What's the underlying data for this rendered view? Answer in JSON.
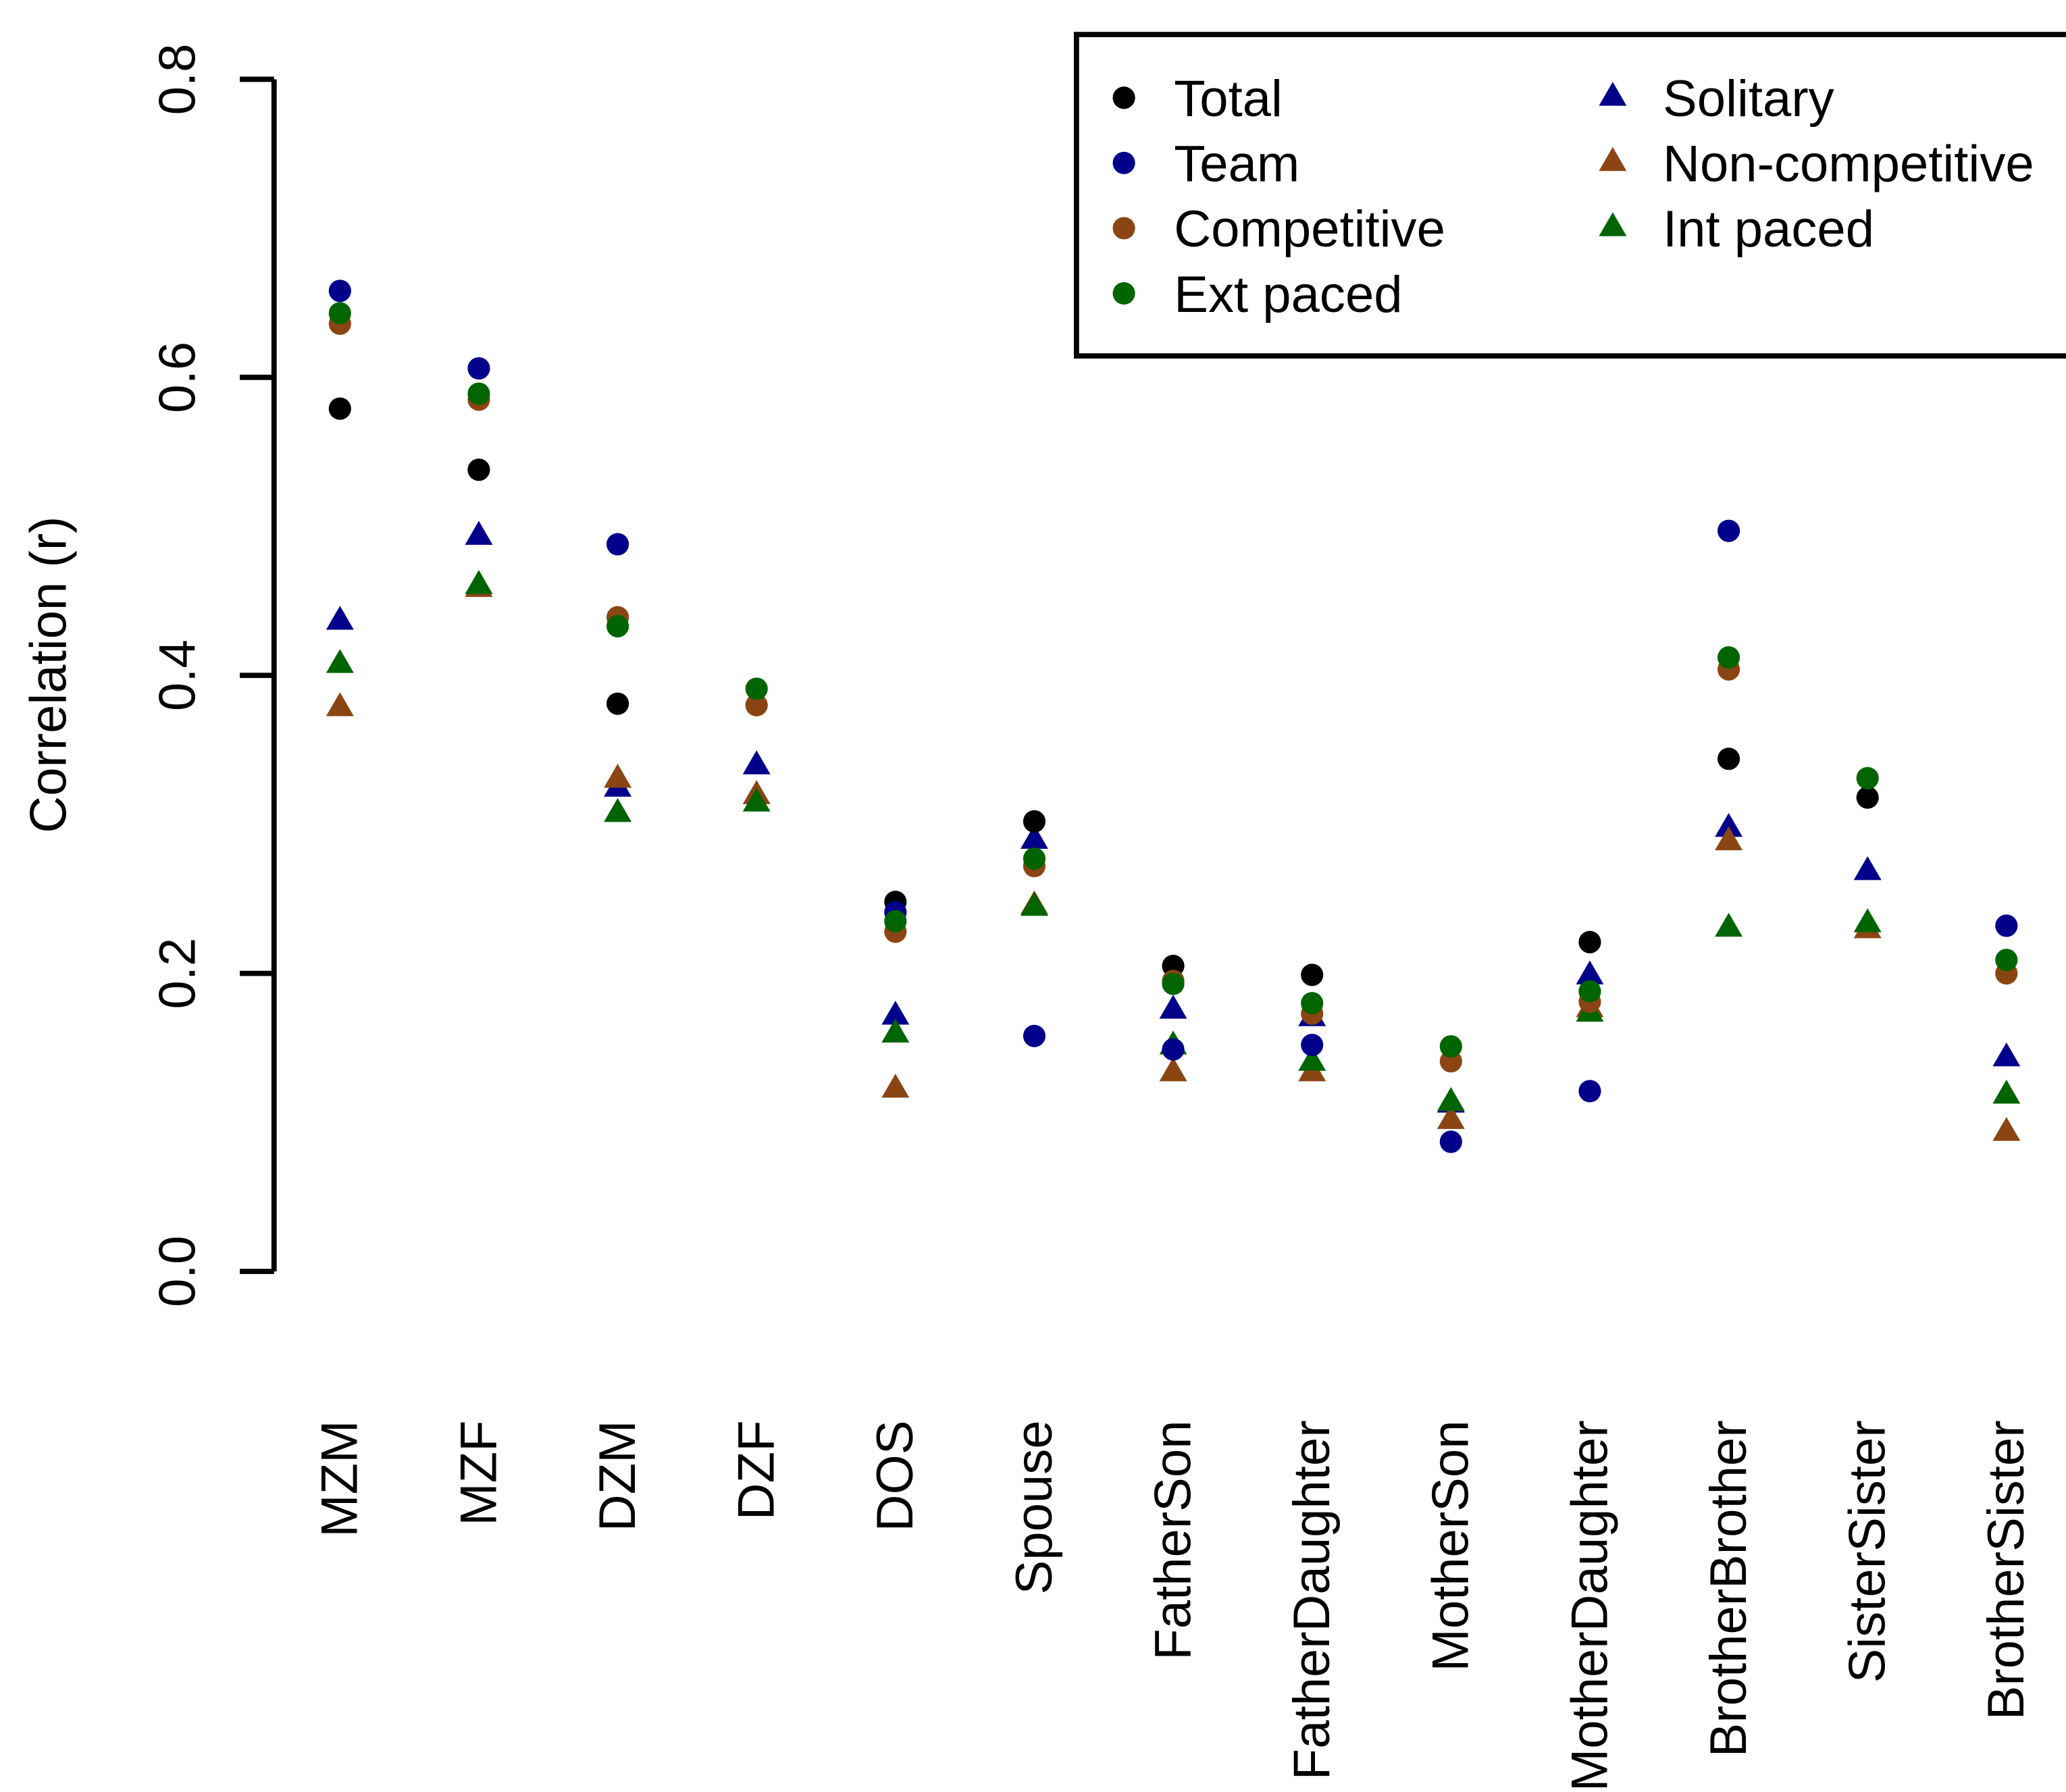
{
  "chart_data": {
    "type": "scatter",
    "title": "",
    "xlabel": "",
    "ylabel": "Correlation (r)",
    "ylim": [
      0.0,
      0.8
    ],
    "yticks": [
      "0.0",
      "0.2",
      "0.4",
      "0.6",
      "0.8"
    ],
    "grid": false,
    "legend_position": "top-right",
    "categories": [
      "MZM",
      "MZF",
      "DZM",
      "DZF",
      "DOS",
      "Spouse",
      "FatherSon",
      "FatherDaughter",
      "MotherSon",
      "MotherDaughter",
      "BrotherBrother",
      "SisterSister",
      "BrotherSister"
    ],
    "series": [
      {
        "name": "Total",
        "marker": "circle",
        "color": "#000000",
        "values": [
          0.579,
          0.538,
          0.381,
          null,
          0.248,
          0.302,
          0.205,
          0.199,
          null,
          0.221,
          0.344,
          0.318,
          null
        ]
      },
      {
        "name": "Team",
        "marker": "circle",
        "color": "#00008B",
        "values": [
          0.658,
          0.606,
          0.488,
          null,
          0.241,
          0.158,
          0.149,
          0.152,
          0.087,
          0.121,
          0.497,
          null,
          0.232
        ]
      },
      {
        "name": "Competitive",
        "marker": "circle",
        "color": "#8B4513",
        "values": [
          0.636,
          0.585,
          0.439,
          0.38,
          0.228,
          0.272,
          0.195,
          0.173,
          0.141,
          0.181,
          0.404,
          null,
          0.2
        ]
      },
      {
        "name": "Ext paced",
        "marker": "circle",
        "color": "#006400",
        "values": [
          0.643,
          0.589,
          0.433,
          0.391,
          0.235,
          0.277,
          0.193,
          0.18,
          0.151,
          0.188,
          0.412,
          0.331,
          0.209
        ]
      },
      {
        "name": "Solitary",
        "marker": "triangle",
        "color": "#00008B",
        "values": [
          0.436,
          0.493,
          0.324,
          0.339,
          0.171,
          0.289,
          0.175,
          0.17,
          0.112,
          0.198,
          0.297,
          0.268,
          0.143
        ]
      },
      {
        "name": "Non-competitive",
        "marker": "triangle",
        "color": "#8B4513",
        "values": [
          0.378,
          0.458,
          0.33,
          0.319,
          0.122,
          0.245,
          0.133,
          0.133,
          0.101,
          0.176,
          0.288,
          0.229,
          0.093
        ]
      },
      {
        "name": "Int paced",
        "marker": "triangle",
        "color": "#006400",
        "values": [
          0.407,
          0.46,
          0.307,
          0.314,
          0.159,
          0.244,
          0.151,
          0.14,
          0.113,
          0.173,
          0.23,
          0.233,
          0.118
        ]
      }
    ]
  }
}
